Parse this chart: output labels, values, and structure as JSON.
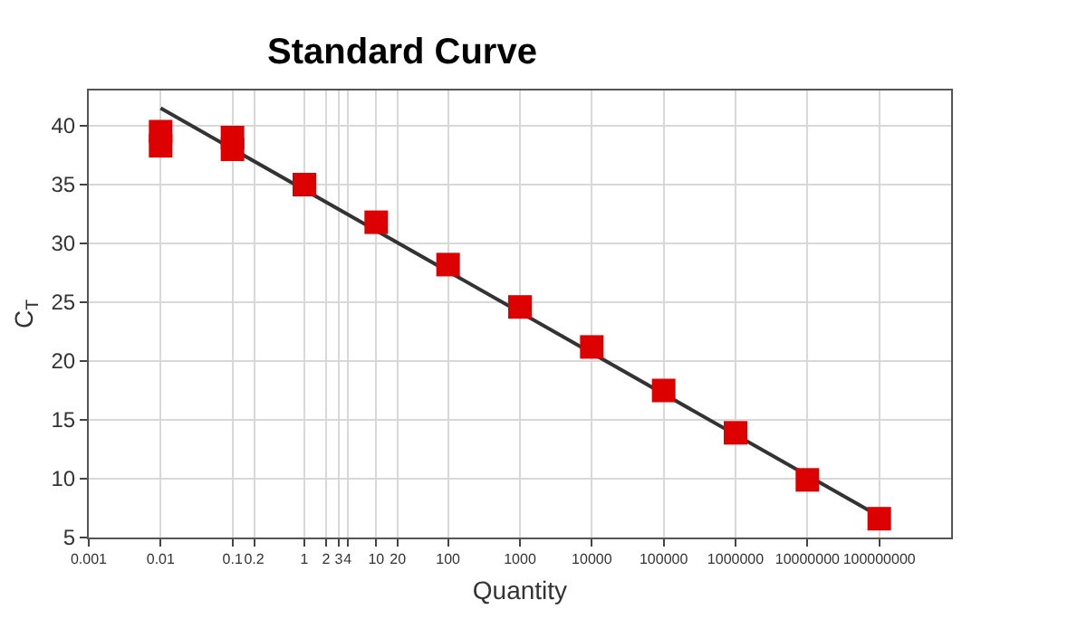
{
  "chart_data": {
    "type": "scatter",
    "title": "Standard Curve",
    "xlabel": "Quantity",
    "ylabel": "C$_{T}$",
    "log": "x",
    "grid": true,
    "series": [
      {
        "marker": "square",
        "color": "#dd0000",
        "x": [
          0.01,
          0.01,
          0.1,
          0.1,
          1,
          10,
          100,
          1000,
          10000,
          100000,
          1000000,
          10000000,
          100000000
        ],
        "values": [
          38.3,
          39.5,
          38,
          39,
          35,
          31.8,
          28.2,
          24.6,
          21.2,
          17.5,
          13.9,
          9.9,
          6.6
        ]
      },
      {
        "type": "line",
        "marker": "none",
        "color": "#333333",
        "x": [
          0.01,
          100000000
        ],
        "values": [
          41.5,
          6.8
        ]
      }
    ],
    "xlim": [
      0.001,
      1000000000
    ],
    "xticks": [
      0.001,
      0.01,
      0.1,
      0.2,
      1,
      2,
      3,
      4,
      10,
      20,
      100,
      1000,
      10000,
      100000,
      1000000,
      10000000,
      100000000
    ],
    "ylim": [
      5,
      43
    ],
    "yticks": [
      5,
      10,
      15,
      20,
      25,
      30,
      35,
      40
    ]
  }
}
